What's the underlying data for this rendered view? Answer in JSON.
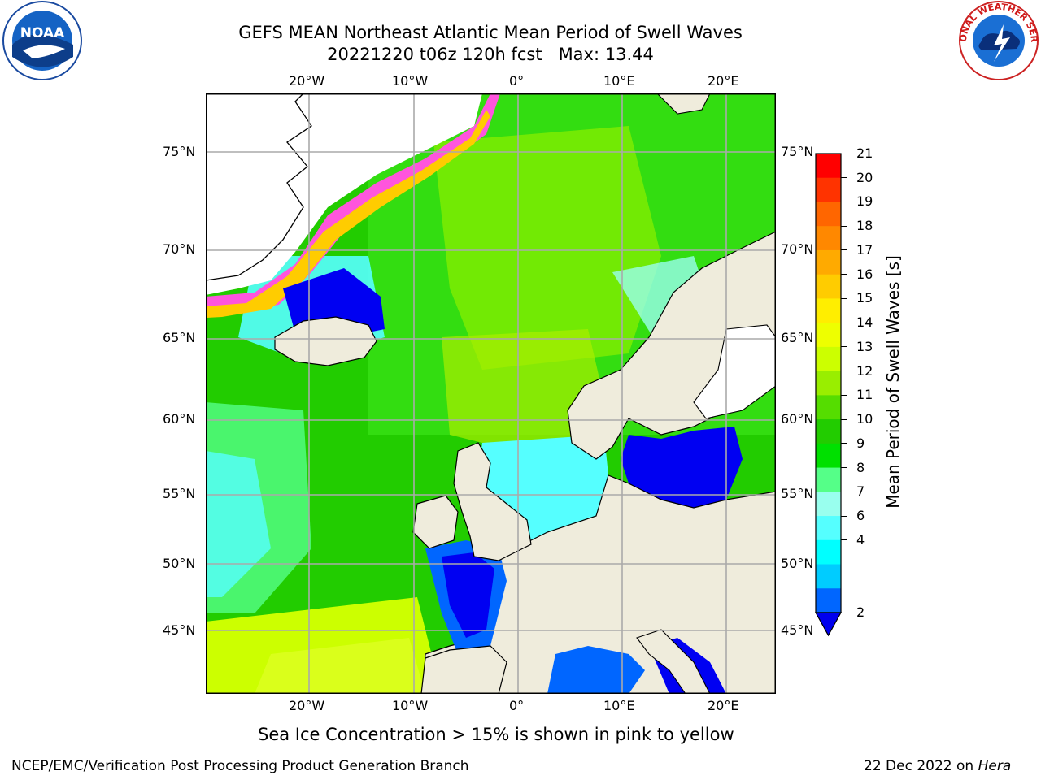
{
  "title": {
    "line1": "GEFS MEAN Northeast Atlantic Mean Period of Swell Waves",
    "line2": "20221220 t06z 120h fcst   Max: 13.44"
  },
  "logos": {
    "left": {
      "name": "noaa-logo",
      "text": "NOAA"
    },
    "right": {
      "name": "national-weather-service-logo",
      "text": "NATIONAL WEATHER SERVICE"
    }
  },
  "map": {
    "longitude_labels": [
      "20°W",
      "10°W",
      "0°",
      "10°E",
      "20°E"
    ],
    "latitude_labels": [
      "75°N",
      "70°N",
      "65°N",
      "60°N",
      "55°N",
      "50°N",
      "45°N"
    ],
    "colors": {
      "land": "#efecdc",
      "ocean_low": "#0000f2",
      "ocean_mid": "#00ffff",
      "ocean_high": "#00e000",
      "ice": "#ff55dd"
    }
  },
  "colorbar": {
    "title": "Mean Period of Swell Waves [s]",
    "ticks": [
      "21",
      "20",
      "19",
      "18",
      "17",
      "16",
      "15",
      "14",
      "13",
      "12",
      "11",
      "10",
      "9",
      "8",
      "7",
      "6",
      "4",
      "2"
    ],
    "colors": [
      "#ff0000",
      "#ff3300",
      "#ff6600",
      "#ff8800",
      "#ffaa00",
      "#ffcc00",
      "#ffee00",
      "#eeff00",
      "#ccff00",
      "#99ee00",
      "#55dd00",
      "#22cc00",
      "#00e000",
      "#55ff88",
      "#99ffee",
      "#55ffff",
      "#00ffff",
      "#00ccff",
      "#0066ff"
    ],
    "extend_color": "#0000ee"
  },
  "caption": "Sea Ice Concentration > 15% is shown in pink to yellow",
  "footer": {
    "left": "NCEP/EMC/Verification Post Processing Product Generation Branch",
    "right_date": "22 Dec 2022 on ",
    "right_host": "Hera"
  }
}
